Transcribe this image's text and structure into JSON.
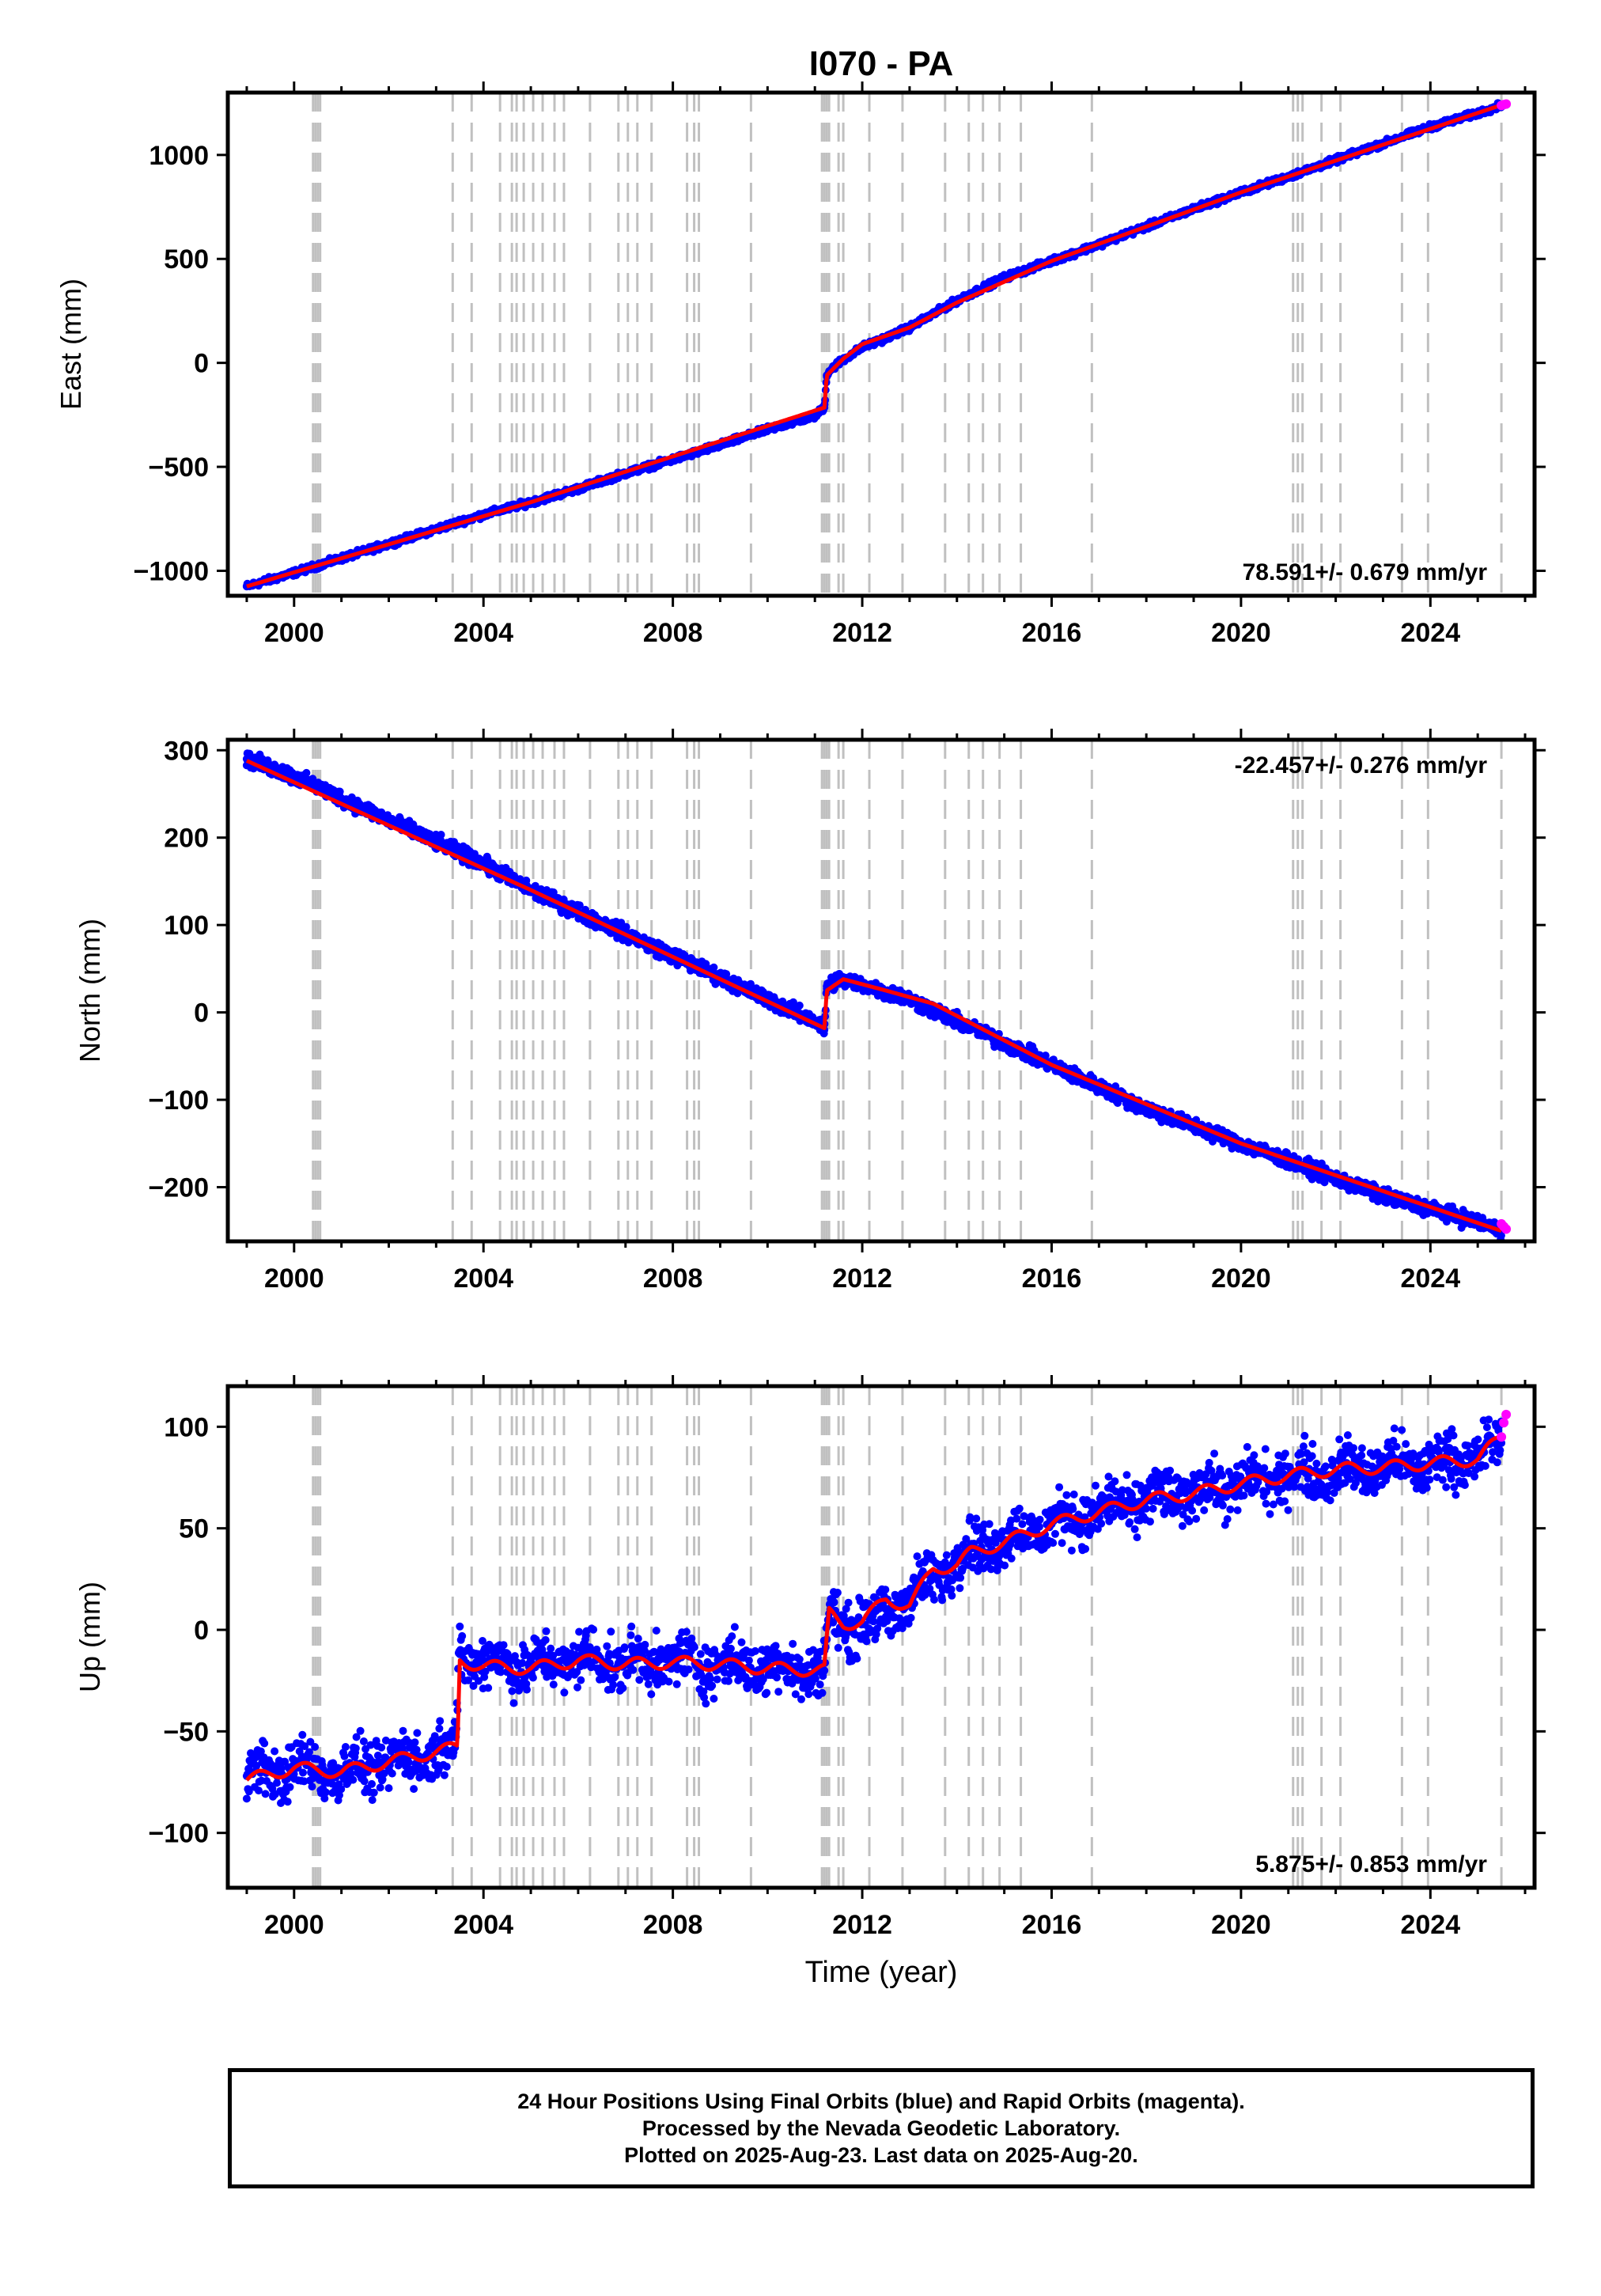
{
  "figure": {
    "title": "I070 - PA",
    "xlabel": "Time (year)"
  },
  "chart_data": [
    {
      "type": "scatter",
      "ylabel": "East (mm)",
      "xlim": [
        1998.6,
        2026.2
      ],
      "ylim": [
        -1120,
        1300
      ],
      "xticks": [
        2000,
        2004,
        2008,
        2012,
        2016,
        2020,
        2024
      ],
      "yticks": [
        -1000,
        -500,
        0,
        500,
        1000
      ],
      "rate_label": "78.591+/- 0.679 mm/yr",
      "rate_position": "bottom-right",
      "series": [
        {
          "name": "Final Orbits",
          "color": "#0000ff",
          "x": [
            1999.0,
            2000.0,
            2001.0,
            2002.0,
            2003.0,
            2004.0,
            2005.0,
            2006.0,
            2007.0,
            2008.0,
            2009.0,
            2010.0,
            2011.0,
            2011.2,
            2011.25,
            2011.3,
            2011.5,
            2012.0,
            2012.5,
            2013.0,
            2014.0,
            2015.0,
            2016.0,
            2017.0,
            2018.0,
            2019.0,
            2020.0,
            2021.0,
            2022.0,
            2023.0,
            2024.0,
            2025.0,
            2025.5
          ],
          "y": [
            -1075,
            -1010,
            -940,
            -870,
            -800,
            -730,
            -670,
            -605,
            -530,
            -465,
            -395,
            -320,
            -255,
            -215,
            -60,
            -40,
            0,
            75,
            120,
            170,
            300,
            410,
            490,
            570,
            655,
            740,
            820,
            895,
            975,
            1055,
            1135,
            1200,
            1240
          ]
        },
        {
          "name": "Trend",
          "color": "#ff0000",
          "x": [
            1999.0,
            2005.0,
            2011.2,
            2011.25,
            2011.6,
            2012.0,
            2013.0,
            2014.0,
            2016.0,
            2020.0,
            2025.5
          ],
          "y": [
            -1075,
            -670,
            -215,
            -60,
            20,
            90,
            170,
            290,
            490,
            820,
            1240
          ]
        },
        {
          "name": "Rapid Orbits",
          "color": "#ff00ff",
          "x": [
            2025.5,
            2025.55,
            2025.6
          ],
          "y": [
            1238,
            1242,
            1245
          ]
        }
      ]
    },
    {
      "type": "scatter",
      "ylabel": "North (mm)",
      "xlim": [
        1998.6,
        2026.2
      ],
      "ylim": [
        -262,
        312
      ],
      "xticks": [
        2000,
        2004,
        2008,
        2012,
        2016,
        2020,
        2024
      ],
      "yticks": [
        -200,
        -100,
        0,
        100,
        200,
        300
      ],
      "rate_label": "-22.457+/- 0.276 mm/yr",
      "rate_position": "top-right",
      "series": [
        {
          "name": "Final Orbits",
          "color": "#0000ff",
          "x": [
            1999.0,
            2000.0,
            2001.0,
            2002.0,
            2003.0,
            2004.0,
            2005.0,
            2006.0,
            2007.0,
            2008.0,
            2009.0,
            2010.0,
            2011.0,
            2011.2,
            2011.25,
            2011.5,
            2012.0,
            2013.0,
            2014.0,
            2015.0,
            2016.0,
            2017.0,
            2018.0,
            2019.0,
            2020.0,
            2021.0,
            2022.0,
            2023.0,
            2024.0,
            2025.0,
            2025.5
          ],
          "y": [
            290,
            270,
            245,
            220,
            195,
            170,
            140,
            115,
            90,
            65,
            40,
            15,
            -10,
            -20,
            30,
            38,
            32,
            15,
            -10,
            -35,
            -60,
            -85,
            -110,
            -130,
            -150,
            -170,
            -190,
            -210,
            -225,
            -240,
            -250
          ]
        },
        {
          "name": "Trend",
          "color": "#ff0000",
          "x": [
            1999.0,
            2005.0,
            2011.2,
            2011.25,
            2011.6,
            2012.5,
            2013.5,
            2016.0,
            2020.0,
            2025.5
          ],
          "y": [
            288,
            140,
            -18,
            25,
            38,
            25,
            10,
            -60,
            -150,
            -250
          ]
        },
        {
          "name": "Rapid Orbits",
          "color": "#ff00ff",
          "x": [
            2025.5,
            2025.55,
            2025.6
          ],
          "y": [
            -242,
            -245,
            -248
          ]
        }
      ]
    },
    {
      "type": "scatter",
      "ylabel": "Up (mm)",
      "xlim": [
        1998.6,
        2026.2
      ],
      "ylim": [
        -127,
        120
      ],
      "xticks": [
        2000,
        2004,
        2008,
        2012,
        2016,
        2020,
        2024
      ],
      "yticks": [
        -100,
        -50,
        0,
        50,
        100
      ],
      "rate_label": "5.875+/- 0.853 mm/yr",
      "rate_position": "bottom-right",
      "series": [
        {
          "name": "Final Orbits",
          "color": "#0000ff",
          "x": [
            1999.0,
            2000.0,
            2001.0,
            2002.0,
            2003.0,
            2003.4,
            2003.5,
            2004.0,
            2005.0,
            2006.0,
            2007.0,
            2008.0,
            2009.0,
            2010.0,
            2011.0,
            2011.2,
            2011.3,
            2011.6,
            2012.0,
            2012.4,
            2014.3,
            2015.0,
            2016.0,
            2017.0,
            2018.0,
            2019.0,
            2020.0,
            2021.0,
            2022.0,
            2023.0,
            2024.0,
            2025.0,
            2025.5
          ],
          "y": [
            -72,
            -68,
            -70,
            -66,
            -60,
            -58,
            -12,
            -15,
            -18,
            -14,
            -16,
            -15,
            -17,
            -18,
            -20,
            -20,
            8,
            2,
            3,
            5,
            40,
            44,
            52,
            58,
            64,
            68,
            72,
            76,
            78,
            80,
            82,
            85,
            92
          ]
        },
        {
          "name": "Trend",
          "color": "#ff0000",
          "x": [
            1999.0,
            2000.0,
            2001.0,
            2002.0,
            2003.0,
            2003.45,
            2003.5,
            2004.0,
            2005.0,
            2006.0,
            2007.0,
            2008.0,
            2009.0,
            2010.0,
            2011.2,
            2011.3,
            2011.6,
            2012.0,
            2012.5,
            2013.0,
            2013.5,
            2014.0,
            2014.3,
            2015.0,
            2016.0,
            2017.0,
            2018.0,
            2019.0,
            2020.0,
            2021.0,
            2022.0,
            2023.0,
            2024.0,
            2025.0,
            2025.5
          ],
          "y": [
            -74,
            -68,
            -70,
            -65,
            -60,
            -58,
            -15,
            -18,
            -19,
            -15,
            -17,
            -16,
            -17,
            -19,
            -20,
            8,
            3,
            4,
            15,
            12,
            30,
            32,
            38,
            43,
            52,
            58,
            64,
            67,
            72,
            76,
            79,
            80,
            82,
            84,
            95
          ]
        },
        {
          "name": "Rapid Orbits",
          "color": "#ff00ff",
          "x": [
            2025.5,
            2025.55,
            2025.6
          ],
          "y": [
            95,
            102,
            106
          ]
        }
      ]
    }
  ],
  "equipment_change_lines": [
    2000.4,
    2000.45,
    2000.5,
    2000.55,
    2003.35,
    2003.75,
    2004.35,
    2004.6,
    2004.7,
    2004.85,
    2005.05,
    2005.25,
    2005.5,
    2005.7,
    2006.25,
    2006.85,
    2007.05,
    2007.25,
    2007.55,
    2008.3,
    2008.45,
    2008.55,
    2009.65,
    2011.15,
    2011.2,
    2011.25,
    2011.3,
    2011.5,
    2011.6,
    2012.15,
    2012.85,
    2013.75,
    2014.25,
    2014.55,
    2014.9,
    2015.35,
    2016.85,
    2021.1,
    2021.2,
    2021.3,
    2021.7,
    2022.1,
    2023.4,
    2023.95,
    2025.5
  ],
  "caption": {
    "line1": "24 Hour Positions Using Final Orbits (blue) and Rapid Orbits (magenta).",
    "line2": "Processed by the Nevada Geodetic Laboratory.",
    "line3": "Plotted on 2025-Aug-23. Last data on 2025-Aug-20."
  }
}
